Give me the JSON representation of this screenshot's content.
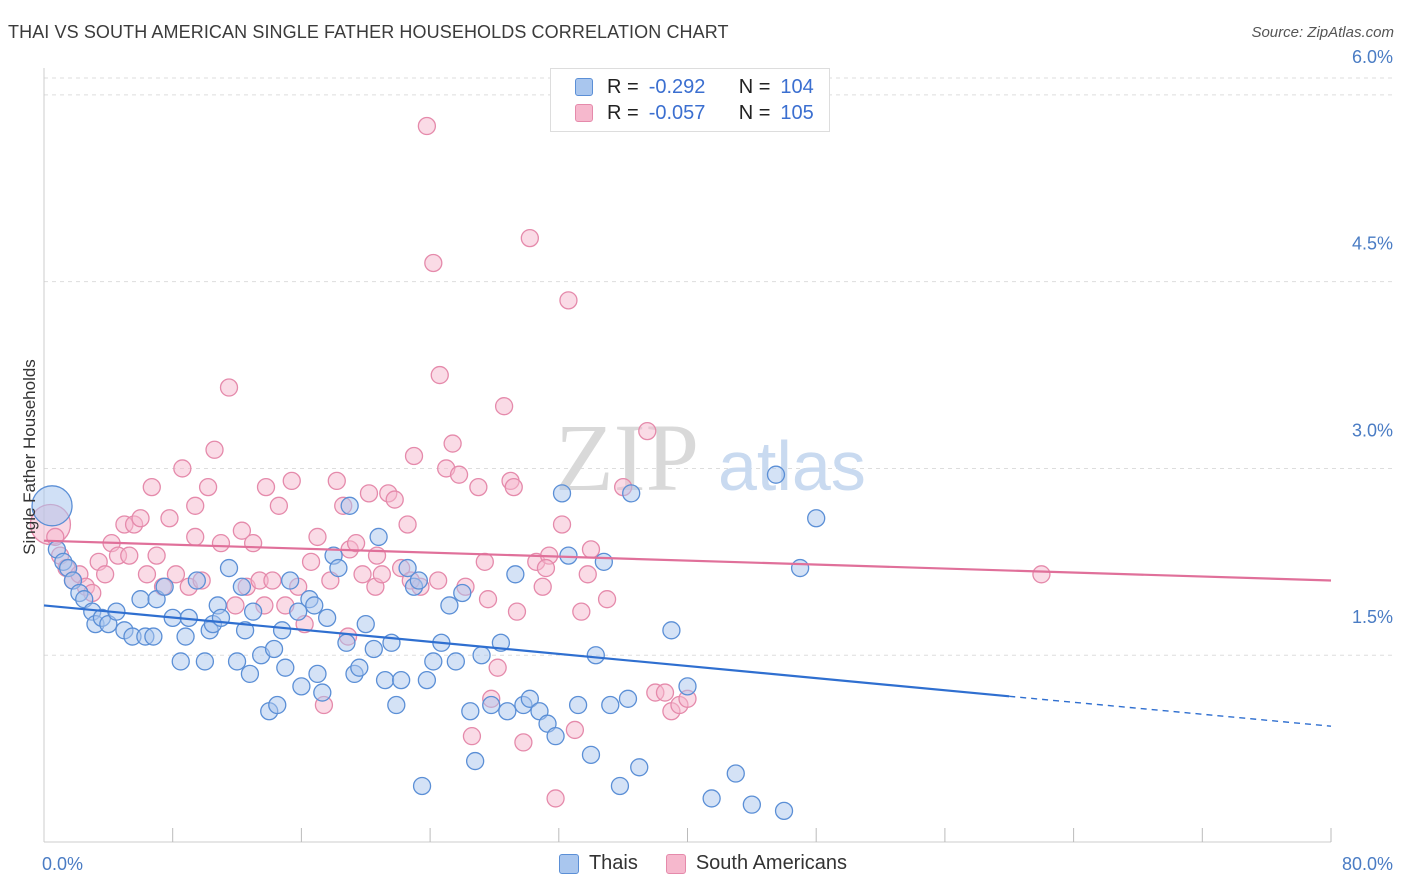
{
  "title": "THAI VS SOUTH AMERICAN SINGLE FATHER HOUSEHOLDS CORRELATION CHART",
  "source": "Source: ZipAtlas.com",
  "watermark": {
    "zip": "ZIP",
    "atlas": "atlas"
  },
  "legend": {
    "rows": [
      {
        "r_label": "R =",
        "r_value": "-0.292",
        "n_label": "N =",
        "n_value": "104"
      },
      {
        "r_label": "R =",
        "r_value": "-0.057",
        "n_label": "N =",
        "n_value": "105"
      }
    ]
  },
  "bottom_legend": [
    "Thais",
    "South Americans"
  ],
  "colors": {
    "thai_fill": "#a9c6ee",
    "thai_stroke": "#5b8fd6",
    "thai_line": "#2f6fd0",
    "sa_fill": "#f6b8cd",
    "sa_stroke": "#e58aab",
    "sa_line": "#e0709a",
    "grid": "#dddddd",
    "tick_text": "#4a7cc4"
  },
  "chart_data": {
    "type": "scatter",
    "title": "THAI VS SOUTH AMERICAN SINGLE FATHER HOUSEHOLDS CORRELATION CHART",
    "xlabel": "",
    "ylabel": "Single Father Households",
    "xlim": [
      0,
      80
    ],
    "ylim": [
      0,
      6.2
    ],
    "x_tick_labels": [
      "0.0%",
      "80.0%"
    ],
    "y_ticks": [
      1.5,
      3.0,
      4.5,
      6.0
    ],
    "y_tick_labels": [
      "1.5%",
      "3.0%",
      "4.5%",
      "6.0%"
    ],
    "grid": true,
    "series": [
      {
        "name": "Thais",
        "r": -0.292,
        "n": 104,
        "trend": {
          "x0": 0,
          "y0": 1.9,
          "x1": 60,
          "y1": 1.17,
          "dash_to_x": 80,
          "dash_to_y": 0.93
        },
        "points": [
          [
            0.5,
            2.7
          ],
          [
            0.8,
            2.35
          ],
          [
            1.2,
            2.25
          ],
          [
            1.5,
            2.2
          ],
          [
            1.8,
            2.1
          ],
          [
            2.2,
            2.0
          ],
          [
            2.5,
            1.95
          ],
          [
            3.0,
            1.85
          ],
          [
            3.2,
            1.75
          ],
          [
            3.6,
            1.8
          ],
          [
            4.0,
            1.75
          ],
          [
            4.5,
            1.85
          ],
          [
            5.0,
            1.7
          ],
          [
            5.5,
            1.65
          ],
          [
            6.0,
            1.95
          ],
          [
            6.3,
            1.65
          ],
          [
            6.8,
            1.65
          ],
          [
            7.0,
            1.95
          ],
          [
            7.5,
            2.05
          ],
          [
            8.0,
            1.8
          ],
          [
            8.5,
            1.45
          ],
          [
            8.8,
            1.65
          ],
          [
            9.0,
            1.8
          ],
          [
            9.5,
            2.1
          ],
          [
            10.0,
            1.45
          ],
          [
            10.3,
            1.7
          ],
          [
            10.5,
            1.75
          ],
          [
            10.8,
            1.9
          ],
          [
            11.0,
            1.8
          ],
          [
            11.5,
            2.2
          ],
          [
            12.0,
            1.45
          ],
          [
            12.3,
            2.05
          ],
          [
            12.5,
            1.7
          ],
          [
            12.8,
            1.35
          ],
          [
            13.0,
            1.85
          ],
          [
            13.5,
            1.5
          ],
          [
            14.0,
            1.05
          ],
          [
            14.3,
            1.55
          ],
          [
            14.5,
            1.1
          ],
          [
            14.8,
            1.7
          ],
          [
            15.0,
            1.4
          ],
          [
            15.3,
            2.1
          ],
          [
            15.8,
            1.85
          ],
          [
            16.0,
            1.25
          ],
          [
            16.5,
            1.95
          ],
          [
            16.8,
            1.9
          ],
          [
            17.0,
            1.35
          ],
          [
            17.3,
            1.2
          ],
          [
            17.6,
            1.8
          ],
          [
            18.0,
            2.3
          ],
          [
            18.3,
            2.2
          ],
          [
            18.8,
            1.6
          ],
          [
            19.0,
            2.7
          ],
          [
            19.3,
            1.35
          ],
          [
            19.6,
            1.4
          ],
          [
            20.0,
            1.75
          ],
          [
            20.5,
            1.55
          ],
          [
            20.8,
            2.45
          ],
          [
            21.2,
            1.3
          ],
          [
            21.6,
            1.6
          ],
          [
            21.9,
            1.1
          ],
          [
            22.2,
            1.3
          ],
          [
            22.6,
            2.2
          ],
          [
            23.0,
            2.05
          ],
          [
            23.3,
            2.1
          ],
          [
            23.8,
            1.3
          ],
          [
            24.2,
            1.45
          ],
          [
            24.7,
            1.6
          ],
          [
            25.2,
            1.9
          ],
          [
            25.6,
            1.45
          ],
          [
            26.0,
            2.0
          ],
          [
            26.5,
            1.05
          ],
          [
            26.8,
            0.65
          ],
          [
            27.2,
            1.5
          ],
          [
            27.8,
            1.1
          ],
          [
            28.4,
            1.6
          ],
          [
            28.8,
            1.05
          ],
          [
            29.3,
            2.15
          ],
          [
            29.8,
            1.1
          ],
          [
            30.2,
            1.15
          ],
          [
            30.8,
            1.05
          ],
          [
            31.3,
            0.95
          ],
          [
            31.8,
            0.85
          ],
          [
            32.2,
            2.8
          ],
          [
            32.6,
            2.3
          ],
          [
            33.2,
            1.1
          ],
          [
            34.0,
            0.7
          ],
          [
            34.3,
            1.5
          ],
          [
            34.8,
            2.25
          ],
          [
            35.2,
            1.1
          ],
          [
            35.8,
            0.45
          ],
          [
            36.3,
            1.15
          ],
          [
            37.0,
            0.6
          ],
          [
            39.0,
            1.7
          ],
          [
            40.0,
            1.25
          ],
          [
            43.0,
            0.55
          ],
          [
            44.0,
            0.3
          ],
          [
            45.5,
            2.95
          ],
          [
            46.0,
            0.25
          ],
          [
            47.0,
            2.2
          ],
          [
            48.0,
            2.6
          ],
          [
            23.5,
            0.45
          ],
          [
            36.5,
            2.8
          ],
          [
            41.5,
            0.35
          ]
        ]
      },
      {
        "name": "South Americans",
        "r": -0.057,
        "n": 105,
        "trend": {
          "x0": 0,
          "y0": 2.42,
          "x1": 80,
          "y1": 2.1
        },
        "points": [
          [
            0.4,
            2.55
          ],
          [
            0.7,
            2.45
          ],
          [
            1.0,
            2.3
          ],
          [
            1.4,
            2.2
          ],
          [
            1.8,
            2.1
          ],
          [
            2.2,
            2.15
          ],
          [
            2.6,
            2.05
          ],
          [
            3.0,
            2.0
          ],
          [
            3.4,
            2.25
          ],
          [
            3.8,
            2.15
          ],
          [
            4.2,
            2.4
          ],
          [
            4.6,
            2.3
          ],
          [
            5.0,
            2.55
          ],
          [
            5.3,
            2.3
          ],
          [
            5.6,
            2.55
          ],
          [
            6.0,
            2.6
          ],
          [
            6.4,
            2.15
          ],
          [
            6.7,
            2.85
          ],
          [
            7.0,
            2.3
          ],
          [
            7.4,
            2.05
          ],
          [
            7.8,
            2.6
          ],
          [
            8.2,
            2.15
          ],
          [
            8.6,
            3.0
          ],
          [
            9.0,
            2.05
          ],
          [
            9.4,
            2.7
          ],
          [
            9.8,
            2.1
          ],
          [
            10.2,
            2.85
          ],
          [
            10.6,
            3.15
          ],
          [
            11.0,
            2.4
          ],
          [
            11.5,
            3.65
          ],
          [
            11.9,
            1.9
          ],
          [
            12.3,
            2.5
          ],
          [
            12.6,
            2.05
          ],
          [
            13.0,
            2.4
          ],
          [
            13.4,
            2.1
          ],
          [
            13.8,
            2.85
          ],
          [
            14.2,
            2.1
          ],
          [
            14.6,
            2.7
          ],
          [
            15.0,
            1.9
          ],
          [
            15.4,
            2.9
          ],
          [
            15.8,
            2.05
          ],
          [
            16.2,
            1.75
          ],
          [
            16.6,
            2.25
          ],
          [
            17.0,
            2.45
          ],
          [
            17.4,
            1.1
          ],
          [
            17.8,
            2.1
          ],
          [
            18.2,
            2.9
          ],
          [
            18.6,
            2.7
          ],
          [
            19.0,
            2.35
          ],
          [
            19.4,
            2.4
          ],
          [
            19.8,
            2.15
          ],
          [
            20.2,
            2.8
          ],
          [
            20.6,
            2.05
          ],
          [
            21.0,
            2.15
          ],
          [
            21.4,
            2.8
          ],
          [
            21.8,
            2.75
          ],
          [
            22.2,
            2.2
          ],
          [
            22.6,
            2.55
          ],
          [
            23.0,
            3.1
          ],
          [
            23.4,
            2.05
          ],
          [
            23.8,
            5.75
          ],
          [
            24.2,
            4.65
          ],
          [
            24.6,
            3.75
          ],
          [
            25.0,
            3.0
          ],
          [
            25.4,
            3.2
          ],
          [
            25.8,
            2.95
          ],
          [
            26.2,
            2.05
          ],
          [
            26.6,
            0.85
          ],
          [
            27.0,
            2.85
          ],
          [
            27.4,
            2.25
          ],
          [
            27.8,
            1.15
          ],
          [
            28.2,
            1.4
          ],
          [
            28.6,
            3.5
          ],
          [
            29.0,
            2.9
          ],
          [
            29.4,
            1.85
          ],
          [
            29.8,
            0.8
          ],
          [
            30.2,
            4.85
          ],
          [
            30.6,
            2.25
          ],
          [
            31.0,
            2.05
          ],
          [
            31.4,
            2.3
          ],
          [
            31.8,
            0.35
          ],
          [
            32.2,
            2.55
          ],
          [
            32.6,
            4.35
          ],
          [
            33.0,
            0.9
          ],
          [
            33.4,
            1.85
          ],
          [
            34.0,
            2.35
          ],
          [
            35.0,
            1.95
          ],
          [
            36.0,
            2.85
          ],
          [
            37.5,
            3.3
          ],
          [
            38.0,
            1.2
          ],
          [
            39.0,
            1.05
          ],
          [
            39.5,
            1.1
          ],
          [
            40.0,
            1.15
          ],
          [
            62.0,
            2.15
          ],
          [
            9.4,
            2.45
          ],
          [
            13.7,
            1.9
          ],
          [
            18.9,
            1.65
          ],
          [
            20.7,
            2.3
          ],
          [
            22.8,
            2.1
          ],
          [
            24.5,
            2.1
          ],
          [
            27.6,
            1.95
          ],
          [
            29.2,
            2.85
          ],
          [
            31.2,
            2.2
          ],
          [
            33.8,
            2.15
          ],
          [
            38.6,
            1.2
          ]
        ]
      }
    ]
  }
}
